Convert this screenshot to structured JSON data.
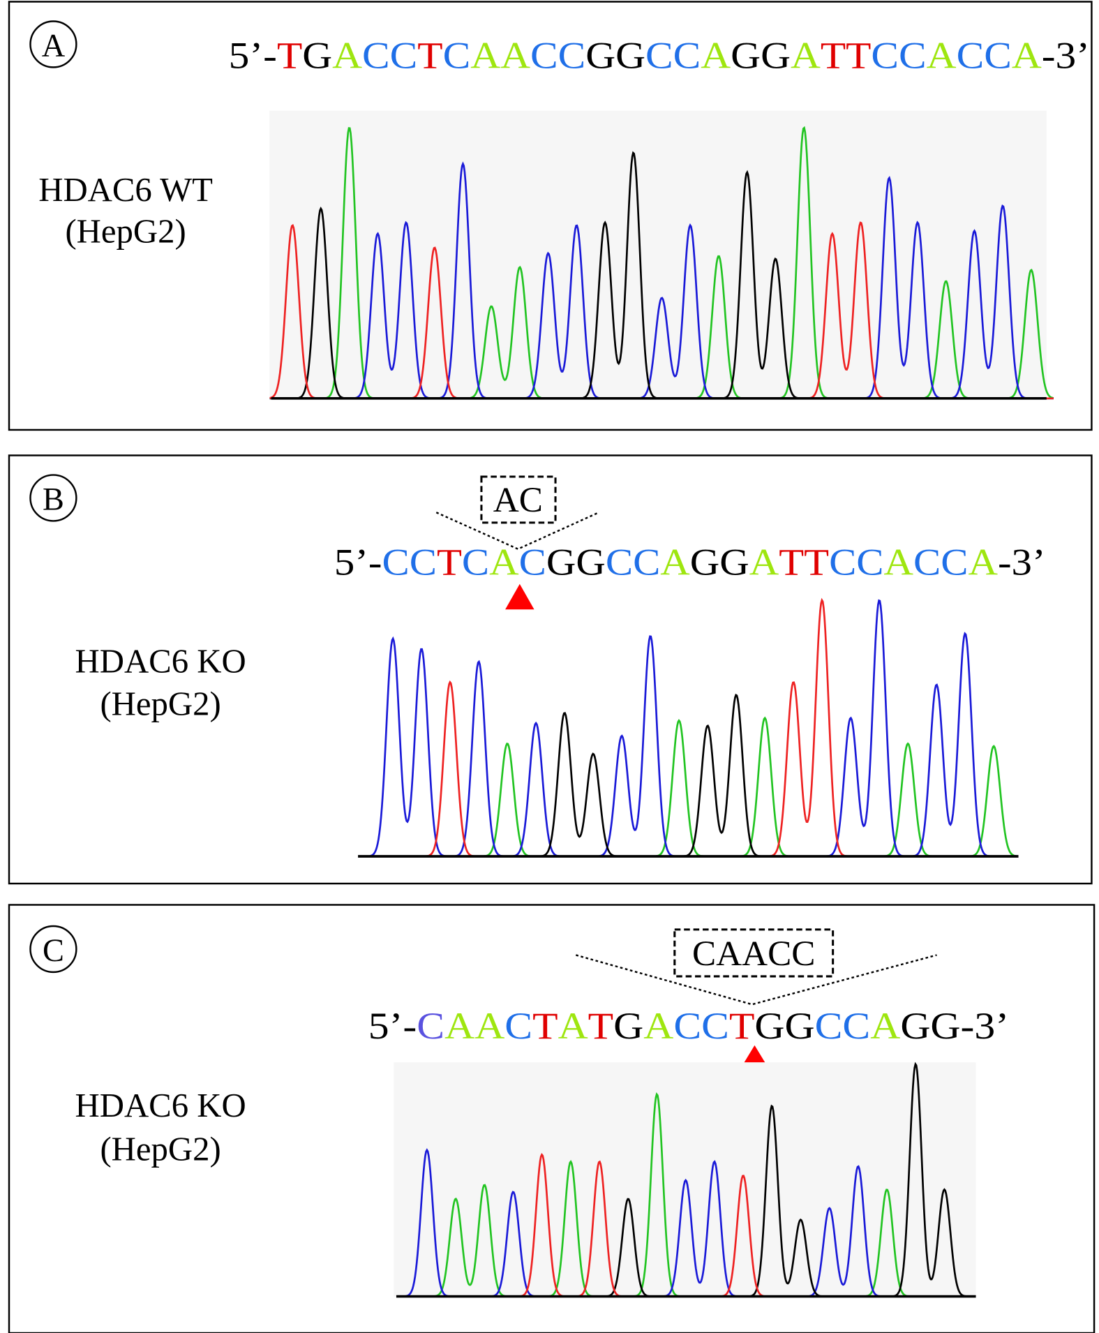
{
  "colors": {
    "A": "#9ee60f",
    "C": "#1f6fe8",
    "G": "#000000",
    "T": "#e00000",
    "C_purple": "#5a52e0",
    "marker": "#ff0000"
  },
  "trace_colors": {
    "A": "#22c422",
    "C": "#1a1ad8",
    "G": "#000000",
    "T": "#ee2222"
  },
  "panels": [
    {
      "id": "A",
      "label_line1": "HDAC6 WT",
      "label_line2": "(HepG2)",
      "prefix": "5’-",
      "sequence": "TGACCTCAACCGGCCAGGATTCCACCA",
      "suffix": "-3’",
      "insertion": null,
      "peaks": [
        {
          "base": "T",
          "h": 0.62
        },
        {
          "base": "G",
          "h": 0.68
        },
        {
          "base": "A",
          "h": 0.97
        },
        {
          "base": "C",
          "h": 0.59
        },
        {
          "base": "C",
          "h": 0.63
        },
        {
          "base": "T",
          "h": 0.54
        },
        {
          "base": "C",
          "h": 0.84
        },
        {
          "base": "A",
          "h": 0.33
        },
        {
          "base": "A",
          "h": 0.47
        },
        {
          "base": "C",
          "h": 0.52
        },
        {
          "base": "C",
          "h": 0.62
        },
        {
          "base": "G",
          "h": 0.63
        },
        {
          "base": "G",
          "h": 0.88
        },
        {
          "base": "C",
          "h": 0.36
        },
        {
          "base": "C",
          "h": 0.62
        },
        {
          "base": "A",
          "h": 0.51
        },
        {
          "base": "G",
          "h": 0.81
        },
        {
          "base": "G",
          "h": 0.5
        },
        {
          "base": "A",
          "h": 0.97
        },
        {
          "base": "T",
          "h": 0.59
        },
        {
          "base": "T",
          "h": 0.63
        },
        {
          "base": "C",
          "h": 0.79
        },
        {
          "base": "C",
          "h": 0.63
        },
        {
          "base": "A",
          "h": 0.42
        },
        {
          "base": "C",
          "h": 0.6
        },
        {
          "base": "C",
          "h": 0.69
        },
        {
          "base": "A",
          "h": 0.46
        }
      ]
    },
    {
      "id": "B",
      "label_line1": "HDAC6 KO",
      "label_line2": "(HepG2)",
      "prefix": "5’-",
      "sequence": "CCTCACGGCCAGGATTCCACCA",
      "suffix": "-3’",
      "insertion": "AC",
      "peaks": [
        {
          "base": "C",
          "h": 0.85
        },
        {
          "base": "C",
          "h": 0.81
        },
        {
          "base": "T",
          "h": 0.68
        },
        {
          "base": "C",
          "h": 0.76
        },
        {
          "base": "A",
          "h": 0.44
        },
        {
          "base": "C",
          "h": 0.52
        },
        {
          "base": "G",
          "h": 0.56
        },
        {
          "base": "G",
          "h": 0.4
        },
        {
          "base": "C",
          "h": 0.47
        },
        {
          "base": "C",
          "h": 0.86
        },
        {
          "base": "A",
          "h": 0.53
        },
        {
          "base": "G",
          "h": 0.51
        },
        {
          "base": "G",
          "h": 0.63
        },
        {
          "base": "A",
          "h": 0.54
        },
        {
          "base": "T",
          "h": 0.68
        },
        {
          "base": "T",
          "h": 1.0
        },
        {
          "base": "C",
          "h": 0.54
        },
        {
          "base": "C",
          "h": 1.0
        },
        {
          "base": "A",
          "h": 0.44
        },
        {
          "base": "C",
          "h": 0.67
        },
        {
          "base": "C",
          "h": 0.87
        },
        {
          "base": "A",
          "h": 0.43
        }
      ]
    },
    {
      "id": "C",
      "label_line1": "HDAC6 KO",
      "label_line2": "(HepG2)",
      "prefix": "5’-",
      "sequence": "CAACTATGACCTGGCCAGG",
      "suffix": "-3’",
      "insertion": "CAACC",
      "peaks": [
        {
          "base": "C",
          "h": 0.63
        },
        {
          "base": "A",
          "h": 0.42
        },
        {
          "base": "A",
          "h": 0.48
        },
        {
          "base": "C",
          "h": 0.45
        },
        {
          "base": "T",
          "h": 0.61
        },
        {
          "base": "A",
          "h": 0.58
        },
        {
          "base": "T",
          "h": 0.58
        },
        {
          "base": "G",
          "h": 0.42
        },
        {
          "base": "A",
          "h": 0.87
        },
        {
          "base": "C",
          "h": 0.5
        },
        {
          "base": "C",
          "h": 0.58
        },
        {
          "base": "T",
          "h": 0.52
        },
        {
          "base": "G",
          "h": 0.82
        },
        {
          "base": "G",
          "h": 0.33
        },
        {
          "base": "C",
          "h": 0.38
        },
        {
          "base": "C",
          "h": 0.56
        },
        {
          "base": "A",
          "h": 0.46
        },
        {
          "base": "G",
          "h": 1.0
        },
        {
          "base": "G",
          "h": 0.46
        }
      ]
    }
  ]
}
